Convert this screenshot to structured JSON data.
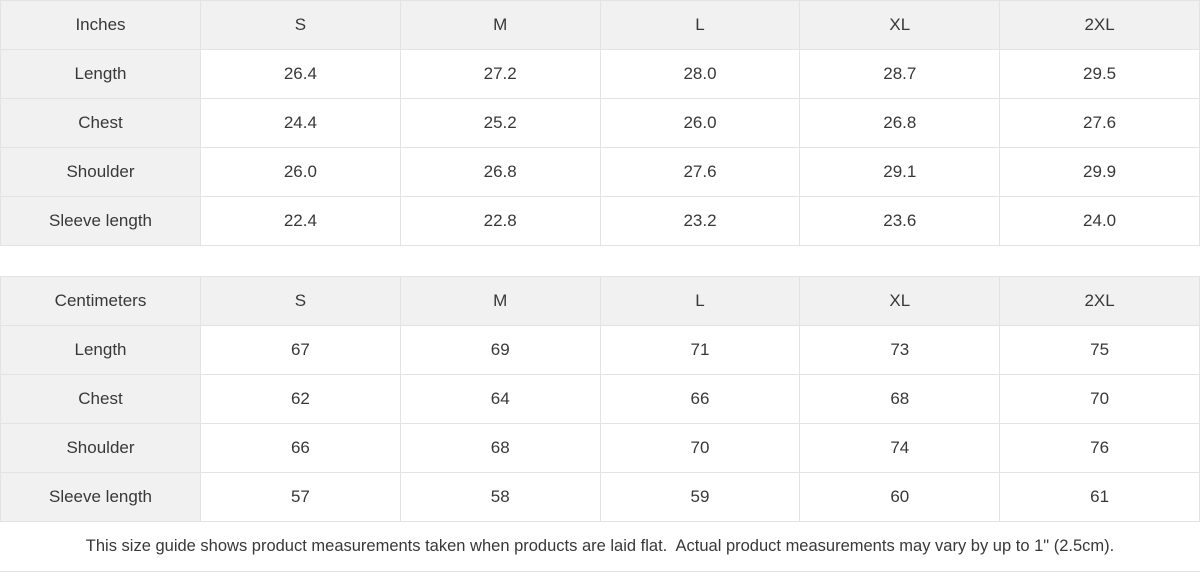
{
  "colors": {
    "header_bg": "#f1f1f1",
    "border": "#e3e3e3",
    "text": "#383838",
    "page_bg": "#ffffff"
  },
  "tables": [
    {
      "unit_label": "Inches",
      "sizes": [
        "S",
        "M",
        "L",
        "XL",
        "2XL"
      ],
      "rows": [
        {
          "label": "Length",
          "values": [
            "26.4",
            "27.2",
            "28.0",
            "28.7",
            "29.5"
          ]
        },
        {
          "label": "Chest",
          "values": [
            "24.4",
            "25.2",
            "26.0",
            "26.8",
            "27.6"
          ]
        },
        {
          "label": "Shoulder",
          "values": [
            "26.0",
            "26.8",
            "27.6",
            "29.1",
            "29.9"
          ]
        },
        {
          "label": "Sleeve length",
          "values": [
            "22.4",
            "22.8",
            "23.2",
            "23.6",
            "24.0"
          ]
        }
      ]
    },
    {
      "unit_label": "Centimeters",
      "sizes": [
        "S",
        "M",
        "L",
        "XL",
        "2XL"
      ],
      "rows": [
        {
          "label": "Length",
          "values": [
            "67",
            "69",
            "71",
            "73",
            "75"
          ]
        },
        {
          "label": "Chest",
          "values": [
            "62",
            "64",
            "66",
            "68",
            "70"
          ]
        },
        {
          "label": "Shoulder",
          "values": [
            "66",
            "68",
            "70",
            "74",
            "76"
          ]
        },
        {
          "label": "Sleeve length",
          "values": [
            "57",
            "58",
            "59",
            "60",
            "61"
          ]
        }
      ]
    }
  ],
  "footer": {
    "note": "This size guide shows product measurements taken when products are laid flat.  Actual product measurements may vary by up to 1\" (2.5cm)."
  },
  "chart_data": [
    {
      "type": "table",
      "title": "Inches",
      "categories": [
        "S",
        "M",
        "L",
        "XL",
        "2XL"
      ],
      "series": [
        {
          "name": "Length",
          "values": [
            26.4,
            27.2,
            28.0,
            28.7,
            29.5
          ]
        },
        {
          "name": "Chest",
          "values": [
            24.4,
            25.2,
            26.0,
            26.8,
            27.6
          ]
        },
        {
          "name": "Shoulder",
          "values": [
            26.0,
            26.8,
            27.6,
            29.1,
            29.9
          ]
        },
        {
          "name": "Sleeve length",
          "values": [
            22.4,
            22.8,
            23.2,
            23.6,
            24.0
          ]
        }
      ]
    },
    {
      "type": "table",
      "title": "Centimeters",
      "categories": [
        "S",
        "M",
        "L",
        "XL",
        "2XL"
      ],
      "series": [
        {
          "name": "Length",
          "values": [
            67,
            69,
            71,
            73,
            75
          ]
        },
        {
          "name": "Chest",
          "values": [
            62,
            64,
            66,
            68,
            70
          ]
        },
        {
          "name": "Shoulder",
          "values": [
            66,
            68,
            70,
            74,
            76
          ]
        },
        {
          "name": "Sleeve length",
          "values": [
            57,
            58,
            59,
            60,
            61
          ]
        }
      ]
    }
  ]
}
